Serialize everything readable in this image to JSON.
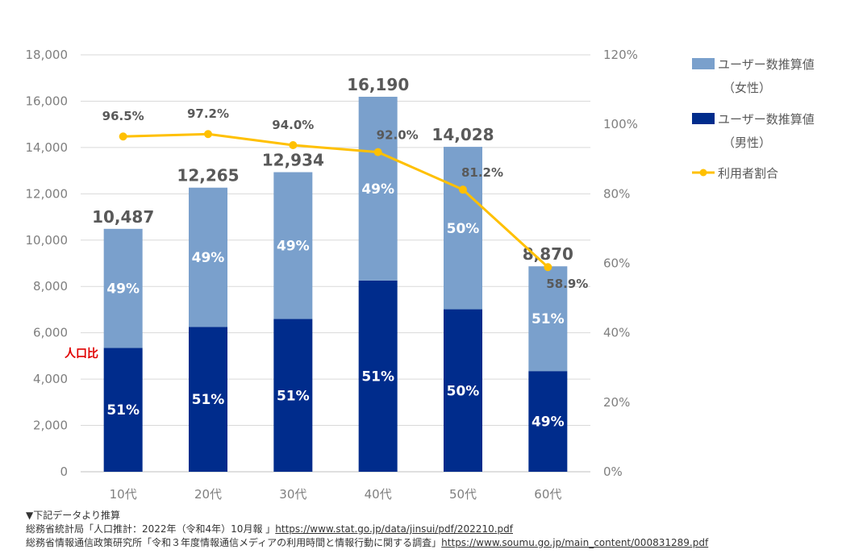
{
  "chart_data": {
    "type": "bar",
    "stacked": true,
    "categories": [
      "10代",
      "20代",
      "30代",
      "40代",
      "50代",
      "60代"
    ],
    "series": [
      {
        "name": "ユーザー数推算値（男性）",
        "color": "#002c8c",
        "values": [
          5348,
          6255,
          6596,
          8257,
          7014,
          4346
        ],
        "labels": [
          "51%",
          "51%",
          "51%",
          "51%",
          "50%",
          "49%"
        ]
      },
      {
        "name": "ユーザー数推算値（女性）",
        "color": "#7aa0cc",
        "values": [
          5139,
          6010,
          6338,
          7933,
          7014,
          4524
        ],
        "labels": [
          "49%",
          "49%",
          "49%",
          "49%",
          "50%",
          "51%"
        ]
      }
    ],
    "totals": [
      10487,
      12265,
      12934,
      16190,
      14028,
      8870
    ],
    "total_labels": [
      "10,487",
      "12,265",
      "12,934",
      "16,190",
      "14,028",
      "8,870"
    ],
    "line_series": {
      "name": "利用者割合",
      "color": "#ffc000",
      "values": [
        96.5,
        97.2,
        94.0,
        92.0,
        81.2,
        58.9
      ],
      "labels": [
        "96.5%",
        "97.2%",
        "94.0%",
        "92.0%",
        "81.2%",
        "58.9%"
      ]
    },
    "ylim": [
      0,
      18000
    ],
    "yticks": [
      "0",
      "2,000",
      "4,000",
      "6,000",
      "8,000",
      "10,000",
      "12,000",
      "14,000",
      "16,000",
      "18,000"
    ],
    "y2lim": [
      0,
      120
    ],
    "y2ticks": [
      "0%",
      "20%",
      "40%",
      "60%",
      "80%",
      "100%",
      "120%"
    ],
    "grid": true,
    "legend_position": "right",
    "legend": [
      "ユーザー数推算値",
      "（女性）",
      "ユーザー数推算値",
      "（男性）",
      "利用者割合"
    ]
  },
  "annotation": "人口比",
  "notes": {
    "heading": "▼下記データより推算",
    "source1_text": "総務省統計局「人口推計：2022年（令和4年）10月報 」",
    "source1_url": "https://www.stat.go.jp/data/jinsui/pdf/202210.pdf",
    "source2_text": "総務省情報通信政策研究所「令和３年度情報通信メディアの利用時間と情報行動に関する調査」",
    "source2_url": "https://www.soumu.go.jp/main_content/000831289.pdf"
  }
}
